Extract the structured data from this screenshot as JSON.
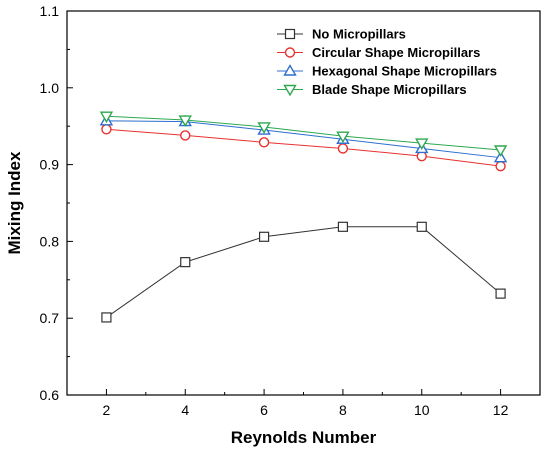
{
  "chart_data": {
    "type": "line",
    "xlabel": "Reynolds Number",
    "ylabel": "Mixing Index",
    "xlim": [
      1,
      13
    ],
    "ylim": [
      0.6,
      1.1
    ],
    "x": [
      2,
      4,
      6,
      8,
      10,
      12
    ],
    "xticks": [
      2,
      4,
      6,
      8,
      10,
      12
    ],
    "yticks": [
      0.6,
      0.7,
      0.8,
      0.9,
      1.0,
      1.1
    ],
    "ytick_labels": [
      "0.6",
      "0.7",
      "0.8",
      "0.9",
      "1.0",
      "1.1"
    ],
    "grid": false,
    "legend_position": "top-right",
    "series": [
      {
        "name": "No Micropillars",
        "marker": "square",
        "color": "#333333",
        "values": [
          0.701,
          0.773,
          0.806,
          0.819,
          0.819,
          0.732
        ]
      },
      {
        "name": "Circular Shape Micropillars",
        "marker": "circle",
        "color": "#e8312f",
        "values": [
          0.946,
          0.938,
          0.929,
          0.921,
          0.911,
          0.898
        ]
      },
      {
        "name": "Hexagonal Shape Micropillars",
        "marker": "triangle-up",
        "color": "#2e6fcf",
        "values": [
          0.957,
          0.956,
          0.945,
          0.933,
          0.921,
          0.909
        ]
      },
      {
        "name": "Blade Shape Micropillars",
        "marker": "triangle-down",
        "color": "#2ea84f",
        "values": [
          0.963,
          0.958,
          0.949,
          0.937,
          0.928,
          0.919
        ]
      }
    ]
  }
}
